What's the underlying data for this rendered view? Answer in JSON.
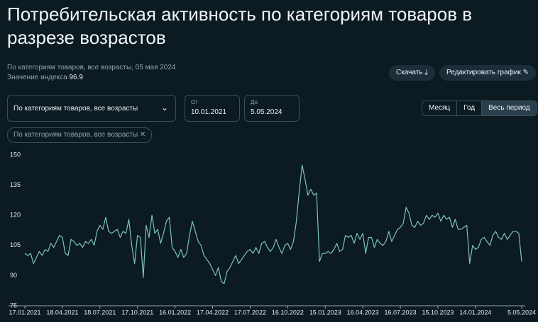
{
  "header": {
    "title": "Потребительская активность по категориям товаров в разрезе возрастов",
    "subtitle": "По категориям товаров, все возрасты, 05 мая 2024",
    "index_label": "Значение индекса",
    "index_value": "96.9"
  },
  "buttons": {
    "download": "Скачать",
    "edit": "Редактировать график"
  },
  "controls": {
    "select": "По категориям товаров, все возрасты",
    "from_label": "От",
    "from_value": "10.01.2021",
    "to_label": "До",
    "to_value": "5.05.2024",
    "periods": [
      "Месяц",
      "Год",
      "Весь период"
    ],
    "chip": "По категориям товаров, все возрасты"
  },
  "chart_data": {
    "type": "line",
    "color": "#7cc4bb",
    "grid": false,
    "ylim": [
      75,
      150
    ],
    "yticks": [
      75,
      90,
      105,
      120,
      135,
      150
    ],
    "categories": [
      "17.01.2021",
      null,
      null,
      null,
      null,
      null,
      null,
      null,
      null,
      null,
      null,
      null,
      null,
      "18.04.2021",
      null,
      null,
      null,
      null,
      null,
      null,
      null,
      null,
      null,
      null,
      null,
      null,
      "18.07.2021",
      null,
      null,
      null,
      null,
      null,
      null,
      null,
      null,
      null,
      null,
      null,
      null,
      "17.10.2021",
      null,
      null,
      null,
      null,
      null,
      null,
      null,
      null,
      null,
      null,
      null,
      null,
      "16.01.2022",
      null,
      null,
      null,
      null,
      null,
      null,
      null,
      null,
      null,
      null,
      null,
      null,
      "17.04.2022",
      null,
      null,
      null,
      null,
      null,
      null,
      null,
      null,
      null,
      null,
      null,
      null,
      "17.07.2022",
      null,
      null,
      null,
      null,
      null,
      null,
      null,
      null,
      null,
      null,
      null,
      null,
      "16.10.2022",
      null,
      null,
      null,
      null,
      null,
      null,
      null,
      null,
      null,
      null,
      null,
      null,
      "15.01.2023",
      null,
      null,
      null,
      null,
      null,
      null,
      null,
      null,
      null,
      null,
      null,
      null,
      "16.04.2023",
      null,
      null,
      null,
      null,
      null,
      null,
      null,
      null,
      null,
      null,
      null,
      null,
      "16.07.2023",
      null,
      null,
      null,
      null,
      null,
      null,
      null,
      null,
      null,
      null,
      null,
      null,
      "15.10.2023",
      null,
      null,
      null,
      null,
      null,
      null,
      null,
      null,
      null,
      null,
      null,
      null,
      "14.01.2024",
      null,
      null,
      null,
      null,
      null,
      null,
      null,
      null,
      null,
      null,
      null,
      null,
      null,
      null,
      null,
      "5.05.2024"
    ],
    "values": [
      101,
      100,
      101,
      96,
      99,
      102,
      100,
      103,
      102,
      106,
      104,
      107,
      110,
      109,
      101,
      100,
      108,
      107,
      105,
      106,
      104,
      107,
      106,
      108,
      105,
      112,
      115,
      113,
      119,
      112,
      111,
      112,
      113,
      109,
      112,
      111,
      118,
      105,
      96,
      110,
      109,
      89,
      115,
      109,
      120,
      111,
      113,
      106,
      111,
      117,
      119,
      104,
      102,
      99,
      103,
      99,
      101,
      110,
      117,
      112,
      107,
      105,
      100,
      98,
      96,
      93,
      90,
      94,
      87,
      86,
      92,
      94,
      97,
      100,
      96,
      98,
      100,
      102,
      103,
      101,
      104,
      101,
      106,
      107,
      104,
      102,
      104,
      108,
      104,
      101,
      105,
      106,
      103,
      107,
      117,
      132,
      145,
      138,
      130,
      133,
      130,
      131,
      97,
      101,
      101,
      102,
      101,
      103,
      106,
      102,
      103,
      110,
      109,
      110,
      106,
      111,
      108,
      111,
      101,
      109,
      109,
      104,
      108,
      106,
      105,
      107,
      112,
      107,
      110,
      113,
      114,
      116,
      124,
      121,
      115,
      114,
      117,
      115,
      116,
      120,
      118,
      120,
      119,
      121,
      117,
      120,
      118,
      119,
      114,
      118,
      113,
      113,
      114,
      115,
      96,
      105,
      103,
      104,
      108,
      109,
      107,
      105,
      110,
      112,
      109,
      108,
      111,
      108,
      110,
      112,
      112,
      111,
      97
    ]
  }
}
